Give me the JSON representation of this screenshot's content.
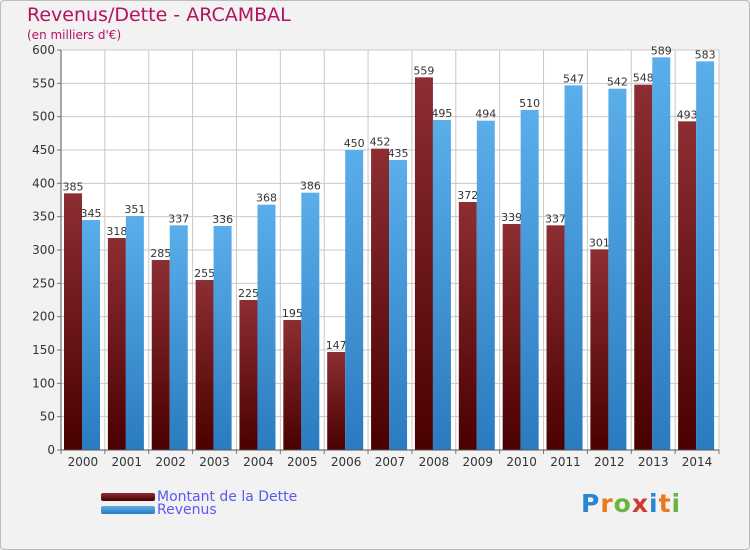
{
  "chart_data": {
    "type": "bar",
    "title": "Revenus/Dette - ARCAMBAL",
    "subtitle": "(en milliers d'€)",
    "categories": [
      "2000",
      "2001",
      "2002",
      "2003",
      "2004",
      "2005",
      "2006",
      "2007",
      "2008",
      "2009",
      "2010",
      "2011",
      "2012",
      "2013",
      "2014"
    ],
    "series": [
      {
        "name": "Montant de la Dette",
        "color": "#7a1b21",
        "values": [
          385,
          318,
          285,
          255,
          225,
          195,
          147,
          452,
          559,
          372,
          339,
          337,
          301,
          548,
          493
        ]
      },
      {
        "name": "Revenus",
        "color": "#4fa7e4",
        "values": [
          345,
          351,
          337,
          336,
          368,
          386,
          450,
          435,
          495,
          494,
          510,
          547,
          542,
          589,
          583
        ]
      }
    ],
    "ylim": [
      0,
      600
    ],
    "yticks": [
      0,
      50,
      100,
      150,
      200,
      250,
      300,
      350,
      400,
      450,
      500,
      550,
      600
    ],
    "grid": true,
    "xlabel": "",
    "ylabel": "",
    "legend_position": "bottom-left"
  },
  "logo": {
    "letters": [
      "P",
      "r",
      "o",
      "x",
      "i",
      "t",
      "i"
    ],
    "colors": [
      "#2a86d1",
      "#e87a1c",
      "#6db33f",
      "#d13b2f",
      "#2a86d1",
      "#e87a1c",
      "#6db33f"
    ]
  }
}
